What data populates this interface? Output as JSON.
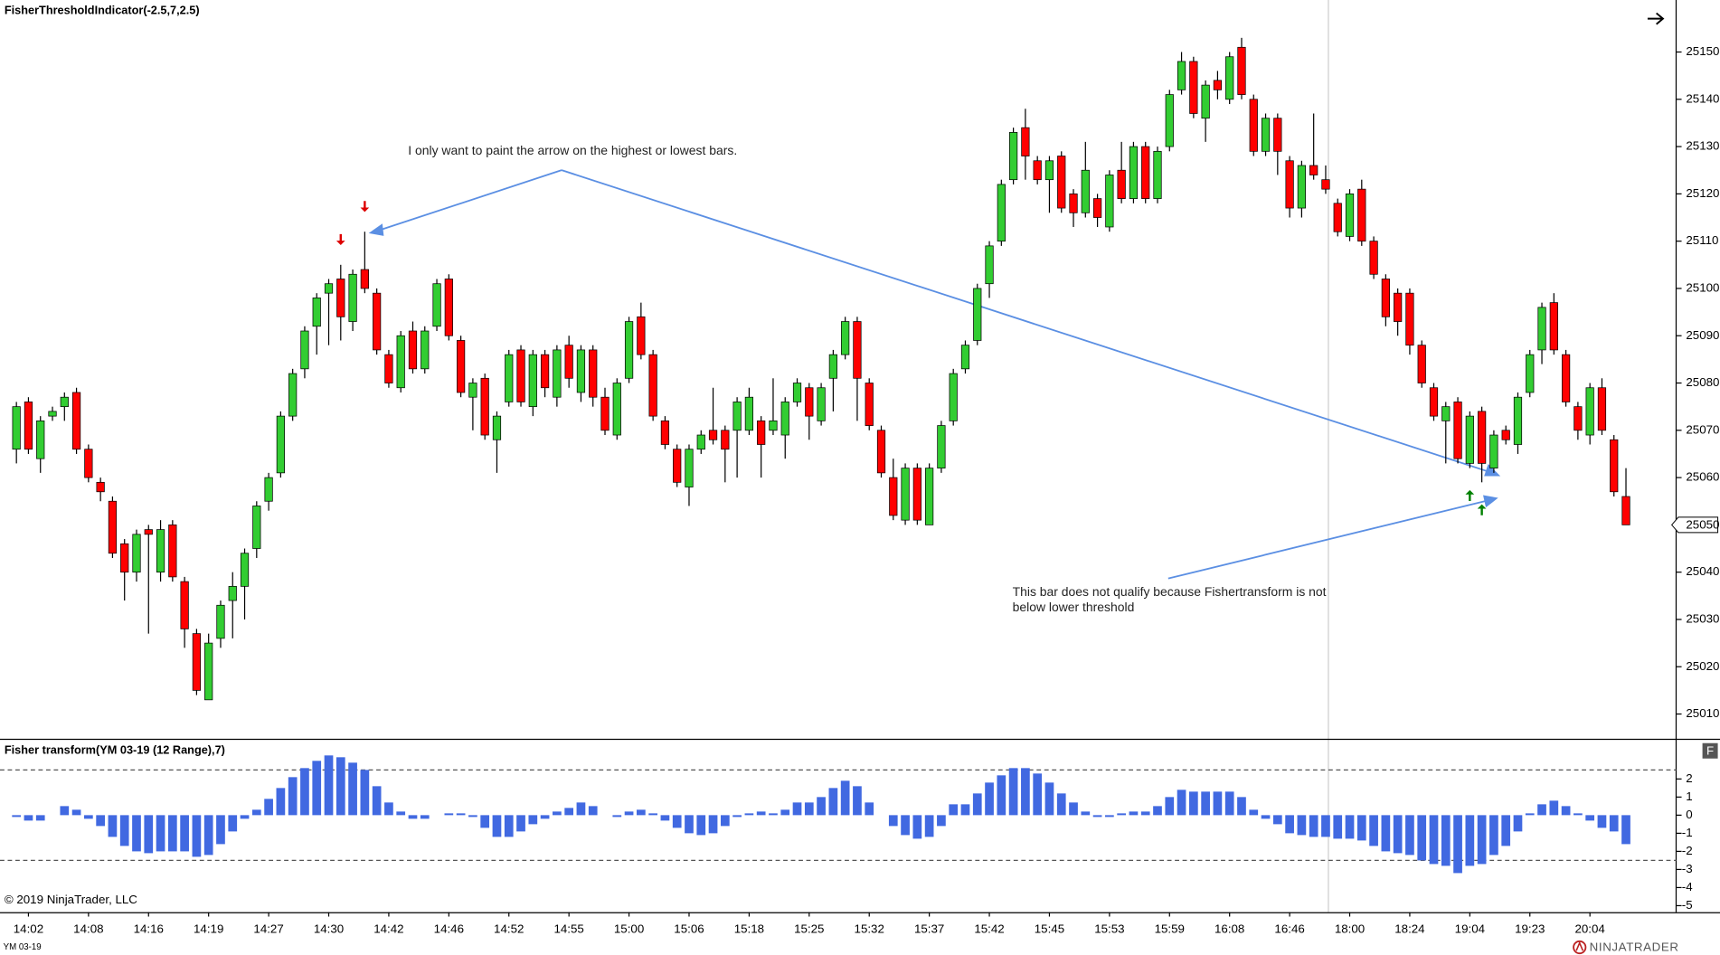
{
  "chart_data": [
    {
      "type": "candlestick",
      "title": "FisherThresholdIndicator(-2.5,7,2.5)",
      "categories": [
        null,
        "14:02",
        null,
        null,
        null,
        null,
        "14:08",
        null,
        null,
        null,
        null,
        "14:16",
        null,
        null,
        null,
        null,
        "14:19",
        null,
        null,
        null,
        null,
        "14:27",
        null,
        null,
        null,
        null,
        "14:30",
        null,
        null,
        null,
        null,
        "14:42",
        null,
        null,
        null,
        null,
        "14:46",
        null,
        null,
        null,
        null,
        "14:52",
        null,
        null,
        null,
        null,
        "14:55",
        null,
        null,
        null,
        null,
        "15:00",
        null,
        null,
        null,
        null,
        "15:06",
        null,
        null,
        null,
        null,
        "15:18",
        null,
        null,
        null,
        null,
        "15:25",
        null,
        null,
        null,
        null,
        "15:32",
        null,
        null,
        null,
        null,
        "15:37",
        null,
        null,
        null,
        null,
        "15:42",
        null,
        null,
        null,
        null,
        "15:45",
        null,
        null,
        null,
        null,
        "15:53",
        null,
        null,
        null,
        null,
        "15:59",
        null,
        null,
        null,
        null,
        "16:08",
        null,
        null,
        null,
        null,
        "16:46",
        null,
        null,
        null,
        null,
        "18:00",
        null,
        null,
        null,
        null,
        "18:24",
        null,
        null,
        null,
        null,
        "19:04",
        null,
        null,
        null,
        null,
        "19:23",
        null,
        null,
        null,
        null,
        "20:04",
        null,
        null,
        null
      ],
      "open": [
        25066,
        25076,
        25064,
        25073,
        25075,
        25078,
        25066,
        25059,
        25055,
        25046,
        25040,
        25049,
        25040,
        25050,
        25038,
        25027,
        25013,
        25026,
        25034,
        25037,
        25045,
        25055,
        25061,
        25073,
        25083,
        25092,
        25099,
        25102,
        25093,
        25104,
        25099,
        25086,
        25079,
        25091,
        25083,
        25092,
        25102,
        25089,
        25077,
        25081,
        25068,
        25076,
        25087,
        25075,
        25086,
        25077,
        25088,
        25078,
        25087,
        25077,
        25069,
        25081,
        25094,
        25086,
        25072,
        25066,
        25058,
        25066,
        25070,
        25070,
        25070,
        25070,
        25072,
        25070,
        25069,
        25076,
        25079,
        25072,
        25081,
        25086,
        25093,
        25080,
        25070,
        25060,
        25051,
        25062,
        25050,
        25062,
        25072,
        25083,
        25089,
        25101,
        25110,
        25123,
        25134,
        25127,
        25123,
        25128,
        25120,
        25116,
        25119,
        25113,
        25125,
        25119,
        25130,
        25119,
        25130,
        25142,
        25148,
        25136,
        25144,
        25140,
        25151,
        25140,
        25129,
        25136,
        25127,
        25117,
        25126,
        25123,
        25118,
        25111,
        25121,
        25110,
        25102,
        25099,
        25099,
        25088,
        25079,
        25072,
        25076,
        25063,
        25074,
        25062,
        25070,
        25067,
        25078,
        25087,
        25097,
        25086,
        25075,
        25069,
        25079,
        25068,
        25056
      ],
      "high": [
        25076,
        25077,
        25073,
        25075,
        25078,
        25079,
        25067,
        25060,
        25056,
        25047,
        25049,
        25050,
        25051,
        25051,
        25039,
        25028,
        25027,
        25034,
        25040,
        25045,
        25055,
        25061,
        25074,
        25083,
        25092,
        25099,
        25102,
        25105,
        25104,
        25112,
        25100,
        25087,
        25091,
        25093,
        25092,
        25102,
        25103,
        25090,
        25081,
        25082,
        25074,
        25087,
        25088,
        25087,
        25087,
        25088,
        25090,
        25088,
        25088,
        25079,
        25081,
        25094,
        25097,
        25087,
        25073,
        25067,
        25067,
        25070,
        25079,
        25071,
        25077,
        25079,
        25073,
        25081,
        25077,
        25081,
        25080,
        25080,
        25087,
        25094,
        25094,
        25081,
        25071,
        25064,
        25063,
        25063,
        25063,
        25072,
        25083,
        25089,
        25101,
        25110,
        25123,
        25134,
        25138,
        25128,
        25128,
        25129,
        25121,
        25131,
        25120,
        25125,
        25131,
        25131,
        25131,
        25130,
        25142,
        25150,
        25149,
        25144,
        25146,
        25150,
        25153,
        25141,
        25137,
        25137,
        25128,
        25127,
        25137,
        25126,
        25119,
        25121,
        25123,
        25111,
        25103,
        25100,
        25100,
        25089,
        25080,
        25076,
        25077,
        25074,
        25075,
        25070,
        25071,
        25078,
        25087,
        25097,
        25099,
        25087,
        25076,
        25080,
        25081,
        25069,
        25062
      ],
      "low": [
        25063,
        25065,
        25061,
        25072,
        25072,
        25065,
        25059,
        25055,
        25043,
        25034,
        25038,
        25027,
        25038,
        25038,
        25024,
        25014,
        25013,
        25024,
        25026,
        25030,
        25043,
        25053,
        25060,
        25072,
        25081,
        25086,
        25088,
        25089,
        25091,
        25099,
        25086,
        25079,
        25078,
        25082,
        25082,
        25091,
        25089,
        25077,
        25070,
        25068,
        25061,
        25075,
        25075,
        25073,
        25077,
        25075,
        25079,
        25076,
        25075,
        25069,
        25068,
        25080,
        25085,
        25072,
        25066,
        25058,
        25054,
        25065,
        25067,
        25059,
        25060,
        25069,
        25060,
        25069,
        25064,
        25075,
        25068,
        25071,
        25074,
        25085,
        25072,
        25070,
        25060,
        25051,
        25050,
        25050,
        25050,
        25061,
        25071,
        25082,
        25088,
        25098,
        25109,
        25122,
        25123,
        25122,
        25116,
        25116,
        25113,
        25115,
        25113,
        25112,
        25118,
        25118,
        25118,
        25118,
        25129,
        25141,
        25136,
        25131,
        25140,
        25139,
        25140,
        25128,
        25128,
        25124,
        25115,
        25115,
        25123,
        25120,
        25111,
        25110,
        25109,
        25102,
        25092,
        25090,
        25086,
        25079,
        25072,
        25063,
        25063,
        25062,
        25059,
        25061,
        25067,
        25065,
        25077,
        25084,
        25086,
        25075,
        25068,
        25067,
        25069,
        25056,
        25050
      ],
      "close": [
        25075,
        25066,
        25072,
        25074,
        25077,
        25066,
        25060,
        25057,
        25044,
        25040,
        25048,
        25048,
        25049,
        25039,
        25028,
        25015,
        25025,
        25033,
        25037,
        25044,
        25054,
        25060,
        25073,
        25082,
        25091,
        25098,
        25101,
        25094,
        25103,
        25100,
        25087,
        25080,
        25090,
        25083,
        25091,
        25101,
        25090,
        25078,
        25080,
        25069,
        25073,
        25086,
        25076,
        25086,
        25079,
        25087,
        25081,
        25087,
        25077,
        25070,
        25080,
        25093,
        25086,
        25073,
        25067,
        25059,
        25066,
        25069,
        25068,
        25066,
        25076,
        25077,
        25067,
        25072,
        25076,
        25080,
        25073,
        25079,
        25086,
        25093,
        25081,
        25071,
        25061,
        25052,
        25062,
        25051,
        25062,
        25071,
        25082,
        25088,
        25100,
        25109,
        25122,
        25133,
        25128,
        25123,
        25127,
        25117,
        25116,
        25125,
        25115,
        25124,
        25119,
        25130,
        25119,
        25129,
        25141,
        25148,
        25137,
        25143,
        25142,
        25149,
        25141,
        25129,
        25136,
        25129,
        25117,
        25126,
        25124,
        25121,
        25112,
        25120,
        25110,
        25103,
        25094,
        25093,
        25088,
        25080,
        25073,
        25075,
        25064,
        25073,
        25063,
        25069,
        25068,
        25077,
        25086,
        25096,
        25087,
        25076,
        25070,
        25079,
        25070,
        25057,
        25050
      ],
      "up_color": "#32cd32",
      "down_color": "#ff0000",
      "wick_color": "#000000",
      "ylim": [
        25005,
        25161
      ],
      "yticks": [
        25010,
        25020,
        25030,
        25040,
        25050,
        25060,
        25070,
        25080,
        25090,
        25100,
        25110,
        25120,
        25130,
        25140,
        25150
      ],
      "signals": [
        {
          "index": 27,
          "direction": "down",
          "color": "#dd0000"
        },
        {
          "index": 29,
          "direction": "down",
          "color": "#dd0000"
        },
        {
          "index": 121,
          "direction": "up",
          "color": "#008000"
        },
        {
          "index": 122,
          "direction": "up",
          "color": "#008000"
        }
      ],
      "annotations": [
        {
          "lines": [
            "I only want to paint the arrow on the highest or lowest bars."
          ]
        },
        {
          "lines": [
            "This bar does not qualify because Fishertransform is not",
            "below lower threshold"
          ]
        }
      ]
    },
    {
      "type": "bar",
      "title": "Fisher transform(YM 03-19 (12 Range),7)",
      "values": [
        -0.1,
        -0.3,
        -0.3,
        0,
        0.5,
        0.3,
        -0.2,
        -0.6,
        -1.2,
        -1.7,
        -2.0,
        -2.1,
        -2.0,
        -2.0,
        -2.0,
        -2.3,
        -2.2,
        -1.6,
        -0.9,
        -0.2,
        0.3,
        0.9,
        1.5,
        2.1,
        2.6,
        3.0,
        3.3,
        3.2,
        2.9,
        2.5,
        1.6,
        0.7,
        0.2,
        -0.2,
        -0.2,
        0,
        0.1,
        0.1,
        -0.1,
        -0.7,
        -1.2,
        -1.2,
        -0.9,
        -0.5,
        -0.2,
        0.2,
        0.4,
        0.7,
        0.5,
        0,
        -0.1,
        0.2,
        0.3,
        0.1,
        -0.3,
        -0.7,
        -1.0,
        -1.1,
        -1.0,
        -0.6,
        -0.1,
        0.1,
        0.2,
        0.1,
        0.3,
        0.7,
        0.7,
        1.0,
        1.5,
        1.9,
        1.6,
        0.7,
        0,
        -0.6,
        -1.1,
        -1.3,
        -1.2,
        -0.6,
        0.6,
        0.6,
        1.2,
        1.8,
        2.2,
        2.6,
        2.6,
        2.3,
        1.8,
        1.2,
        0.7,
        0.2,
        -0.1,
        -0.1,
        0.1,
        0.2,
        0.2,
        0.5,
        1.0,
        1.4,
        1.3,
        1.3,
        1.3,
        1.3,
        1.0,
        0.3,
        -0.2,
        -0.5,
        -1.0,
        -1.1,
        -1.2,
        -1.2,
        -1.3,
        -1.3,
        -1.4,
        -1.7,
        -2.0,
        -2.1,
        -2.2,
        -2.5,
        -2.7,
        -2.8,
        -3.2,
        -2.8,
        -2.7,
        -2.2,
        -1.7,
        -0.9,
        0.1,
        0.6,
        0.8,
        0.5,
        0.1,
        -0.3,
        -0.7,
        -0.9,
        -1.6
      ],
      "color": "#4169e1",
      "ylim": [
        -5.3,
        4.1
      ],
      "yticks": [
        2,
        1,
        0,
        -1,
        -2,
        -3,
        -4,
        -5
      ],
      "thresholds": [
        2.5,
        -2.5
      ]
    }
  ],
  "copyright": "© 2019 NinjaTrader, LLC",
  "instrument": "YM 03-19",
  "brand": "NINJATRADER",
  "panel_button": "F"
}
